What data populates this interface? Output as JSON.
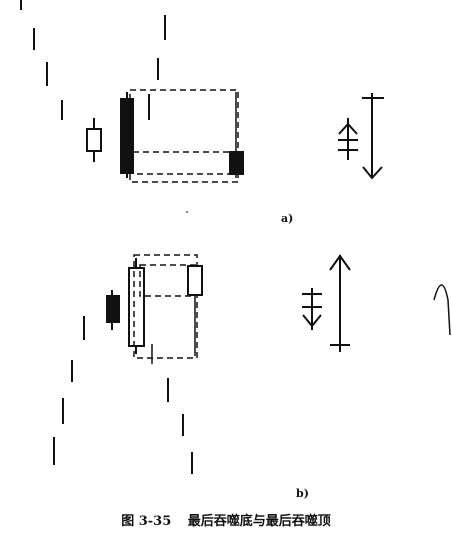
{
  "panels": [
    {
      "id": "a",
      "label": "a)"
    },
    {
      "id": "b",
      "label": "b)"
    }
  ],
  "caption": {
    "number": "图 3-35",
    "title": "最后吞噬底与最后吞噬顶"
  },
  "colors": {
    "ink": "#111111",
    "fill_black": "#111111",
    "fill_white": "#ffffff"
  }
}
